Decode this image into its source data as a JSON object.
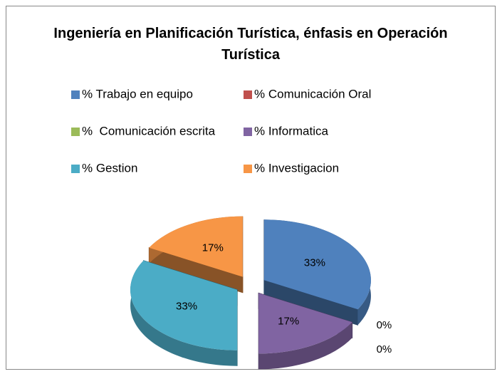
{
  "chart_data": {
    "type": "pie3d",
    "title": "Ingeniería en Planificación Turística, énfasis en Operación Turística",
    "categories": [
      "% Trabajo en equipo",
      "% Comunicación Oral",
      "%  Comunicación escrita",
      "% Informatica",
      "% Gestion",
      "% Investigacion"
    ],
    "values": [
      33,
      0,
      0,
      17,
      33,
      17
    ],
    "value_labels": [
      "33%",
      "0%",
      "0%",
      "17%",
      "33%",
      "17%"
    ],
    "colors": [
      "#4f81bd",
      "#c0504d",
      "#9bbb59",
      "#8064a2",
      "#4bacc6",
      "#f79646"
    ],
    "legend": "top"
  }
}
